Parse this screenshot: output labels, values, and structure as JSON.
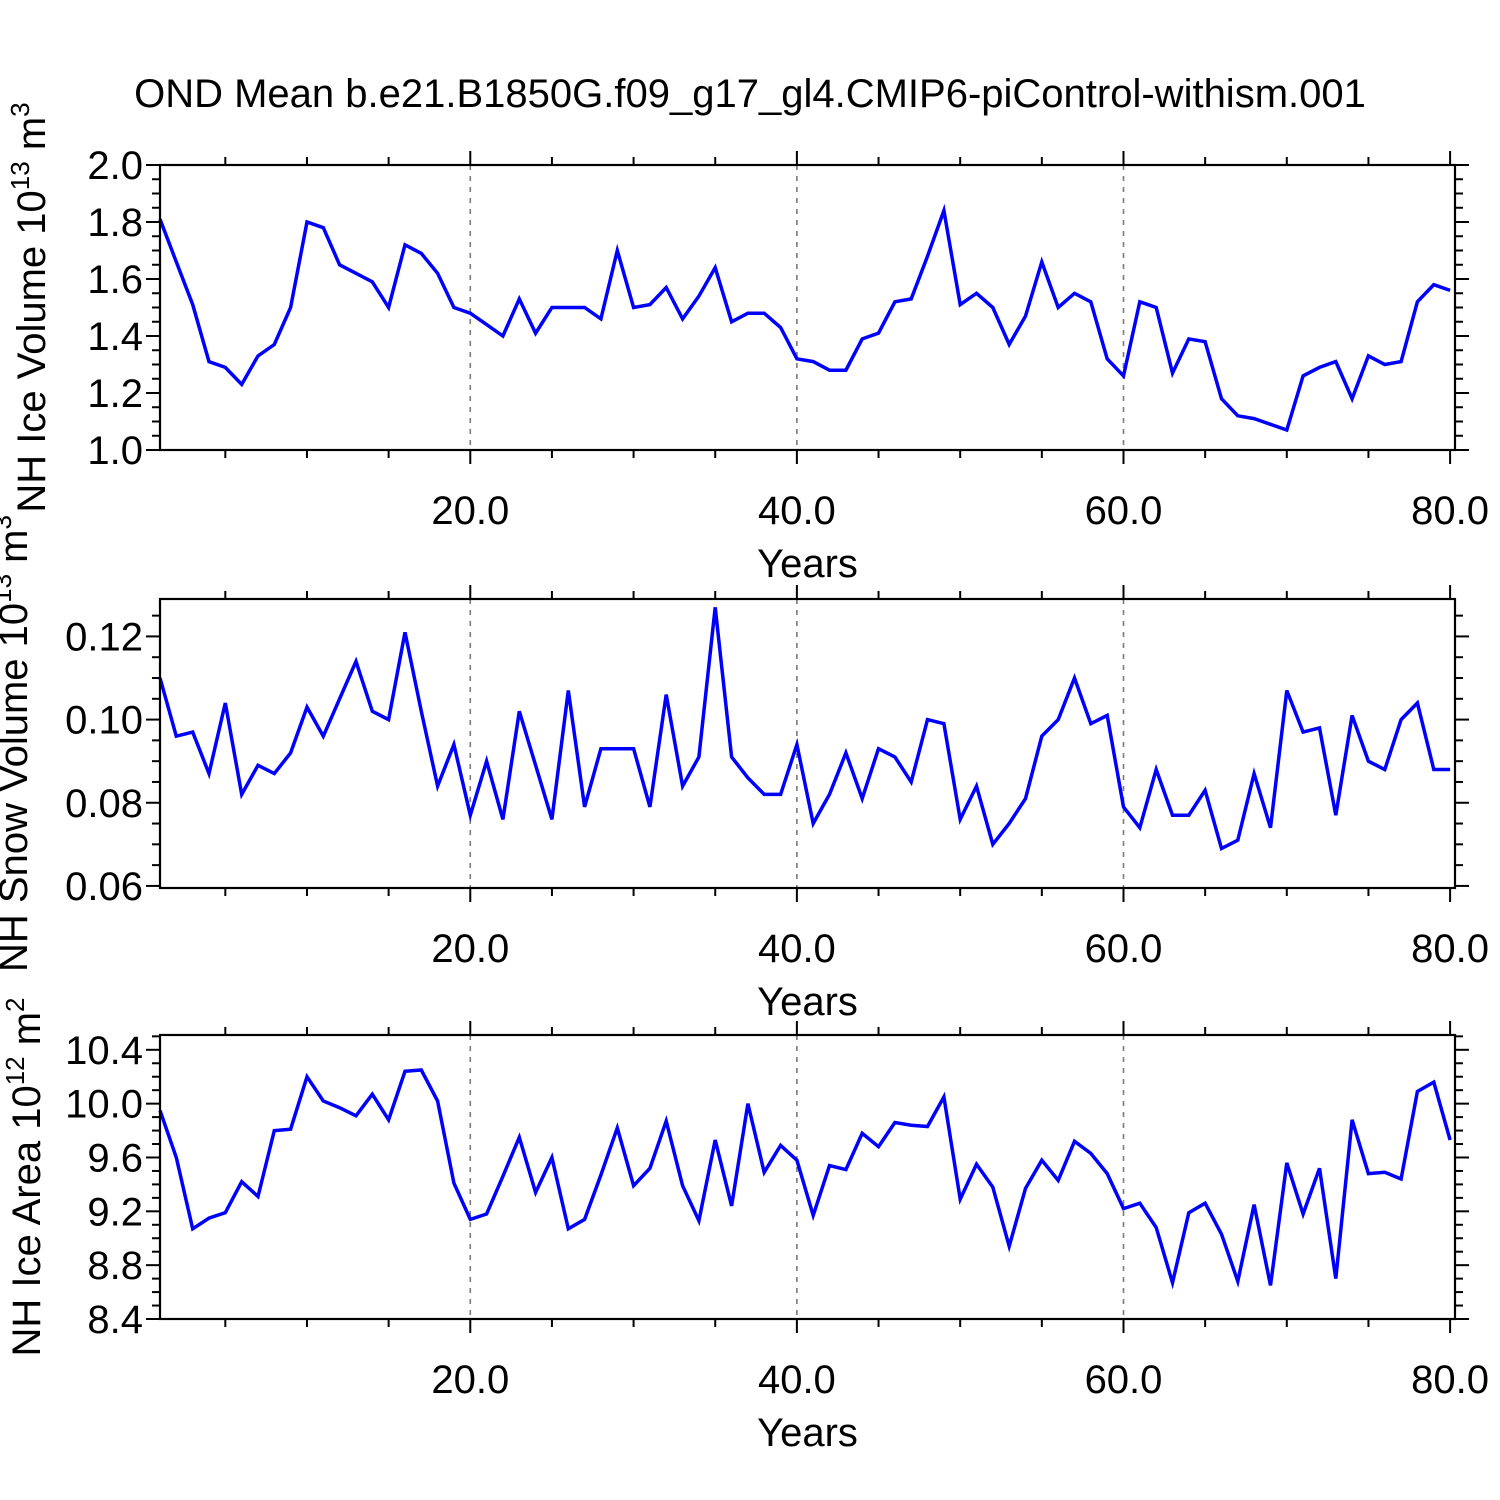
{
  "title": "OND Mean b.e21.B1850G.f09_g17_gl4.CMIP6-piControl-withism.001",
  "line_color": "#0000ff",
  "gridline_color": "#7a7a7a",
  "frame_color": "#000000",
  "x_axis": {
    "label": "Years",
    "major_ticks": [
      20,
      40,
      60,
      80
    ],
    "major_tick_labels": [
      "20.0",
      "40.0",
      "60.0",
      "80.0"
    ],
    "minor_tick_step": 5,
    "gridlines_at": [
      20,
      40,
      60
    ],
    "range": [
      1,
      80.3
    ]
  },
  "chart_data": {
    "type": "line",
    "x_label": "Years",
    "x_start": 1,
    "x_step": 1,
    "grid": "dashed vertical gridlines at years 20, 40, 60",
    "legend_position": "none",
    "panels": [
      {
        "id": "ice-volume",
        "ylabel_text": "NH Ice Volume 10",
        "ylabel_exp": "13",
        "ylabel_unit": " m",
        "ylabel_unit_exp": "3",
        "ylim": [
          1.0,
          2.0
        ],
        "ytick_labels": [
          "1.0",
          "1.2",
          "1.4",
          "1.6",
          "1.8",
          "2.0"
        ],
        "ytick_values": [
          1.0,
          1.2,
          1.4,
          1.6,
          1.8,
          2.0
        ],
        "yminor_step": 0.05,
        "values": [
          1.81,
          1.66,
          1.51,
          1.31,
          1.29,
          1.23,
          1.33,
          1.37,
          1.5,
          1.8,
          1.78,
          1.65,
          1.62,
          1.59,
          1.5,
          1.72,
          1.69,
          1.62,
          1.5,
          1.48,
          1.44,
          1.4,
          1.53,
          1.41,
          1.5,
          1.5,
          1.5,
          1.46,
          1.7,
          1.5,
          1.51,
          1.57,
          1.46,
          1.54,
          1.64,
          1.45,
          1.48,
          1.48,
          1.43,
          1.32,
          1.31,
          1.28,
          1.28,
          1.39,
          1.41,
          1.52,
          1.53,
          1.68,
          1.84,
          1.51,
          1.55,
          1.5,
          1.37,
          1.47,
          1.66,
          1.5,
          1.55,
          1.52,
          1.32,
          1.26,
          1.52,
          1.5,
          1.27,
          1.39,
          1.38,
          1.18,
          1.12,
          1.11,
          1.09,
          1.07,
          1.26,
          1.29,
          1.31,
          1.18,
          1.33,
          1.3,
          1.31,
          1.52,
          1.58,
          1.56
        ]
      },
      {
        "id": "snow-volume",
        "ylabel_text": "NH Snow Volume 10",
        "ylabel_exp": "13",
        "ylabel_unit": " m",
        "ylabel_unit_exp": "3",
        "ylim": [
          0.0595,
          0.129
        ],
        "ytick_labels": [
          "0.06",
          "0.08",
          "0.10",
          "0.12"
        ],
        "ytick_values": [
          0.06,
          0.08,
          0.1,
          0.12
        ],
        "yminor_step": 0.005,
        "values": [
          0.11,
          0.096,
          0.097,
          0.087,
          0.104,
          0.082,
          0.089,
          0.087,
          0.092,
          0.103,
          0.096,
          0.105,
          0.114,
          0.102,
          0.1,
          0.121,
          0.102,
          0.084,
          0.094,
          0.077,
          0.09,
          0.076,
          0.102,
          0.089,
          0.076,
          0.107,
          0.079,
          0.093,
          0.093,
          0.093,
          0.079,
          0.106,
          0.084,
          0.091,
          0.127,
          0.091,
          0.086,
          0.082,
          0.082,
          0.094,
          0.075,
          0.082,
          0.092,
          0.081,
          0.093,
          0.091,
          0.085,
          0.1,
          0.099,
          0.076,
          0.084,
          0.07,
          0.075,
          0.081,
          0.096,
          0.1,
          0.11,
          0.099,
          0.101,
          0.079,
          0.074,
          0.088,
          0.077,
          0.077,
          0.083,
          0.069,
          0.071,
          0.087,
          0.074,
          0.107,
          0.097,
          0.098,
          0.077,
          0.101,
          0.09,
          0.088,
          0.1,
          0.104,
          0.088,
          0.088
        ]
      },
      {
        "id": "ice-area",
        "ylabel_text": "NH Ice Area 10",
        "ylabel_exp": "12",
        "ylabel_unit": " m",
        "ylabel_unit_exp": "2",
        "ylim": [
          8.4,
          10.51
        ],
        "ytick_labels": [
          "8.4",
          "8.8",
          "9.2",
          "9.6",
          "10.0",
          "10.4"
        ],
        "ytick_values": [
          8.4,
          8.8,
          9.2,
          9.6,
          10.0,
          10.4
        ],
        "yminor_step": 0.1,
        "values": [
          9.95,
          9.6,
          9.07,
          9.15,
          9.19,
          9.42,
          9.31,
          9.8,
          9.81,
          10.2,
          10.02,
          9.97,
          9.91,
          10.07,
          9.88,
          10.24,
          10.25,
          10.02,
          9.41,
          9.14,
          9.18,
          9.46,
          9.75,
          9.34,
          9.6,
          9.07,
          9.14,
          9.47,
          9.82,
          9.39,
          9.52,
          9.87,
          9.39,
          9.13,
          9.73,
          9.24,
          10.0,
          9.49,
          9.69,
          9.58,
          9.17,
          9.54,
          9.51,
          9.78,
          9.68,
          9.86,
          9.84,
          9.83,
          10.05,
          9.29,
          9.55,
          9.38,
          8.94,
          9.37,
          9.58,
          9.43,
          9.72,
          9.63,
          9.48,
          9.22,
          9.26,
          9.08,
          8.67,
          9.19,
          9.26,
          9.03,
          8.68,
          9.25,
          8.65,
          9.56,
          9.18,
          9.52,
          8.7,
          9.88,
          9.48,
          9.49,
          9.44,
          10.09,
          10.16,
          9.73
        ]
      }
    ]
  }
}
